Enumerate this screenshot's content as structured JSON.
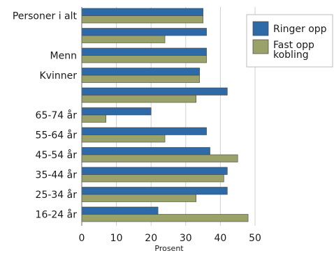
{
  "chart_data": {
    "type": "bar",
    "orientation": "horizontal",
    "categories": [
      "Personer i alt",
      "",
      "Menn",
      "Kvinner",
      "",
      "65-74 år",
      "55-64 år",
      "45-54 år",
      "35-44 år",
      "25-34 år",
      "16-24 år"
    ],
    "series": [
      {
        "name": "Ringer opp",
        "color": "#2e6aa8",
        "values": [
          35,
          36,
          36,
          34,
          42,
          20,
          36,
          37,
          42,
          42,
          22
        ]
      },
      {
        "name": "Fast opp kobling",
        "color": "#9aa26a",
        "values": [
          35,
          24,
          36,
          34,
          33,
          7,
          24,
          45,
          41,
          33,
          48
        ]
      }
    ],
    "xlabel": "Prosent",
    "xlim": [
      0,
      50
    ],
    "xticks": [
      0,
      10,
      20,
      30,
      40,
      50
    ],
    "grid": true,
    "legend": "top-right"
  }
}
